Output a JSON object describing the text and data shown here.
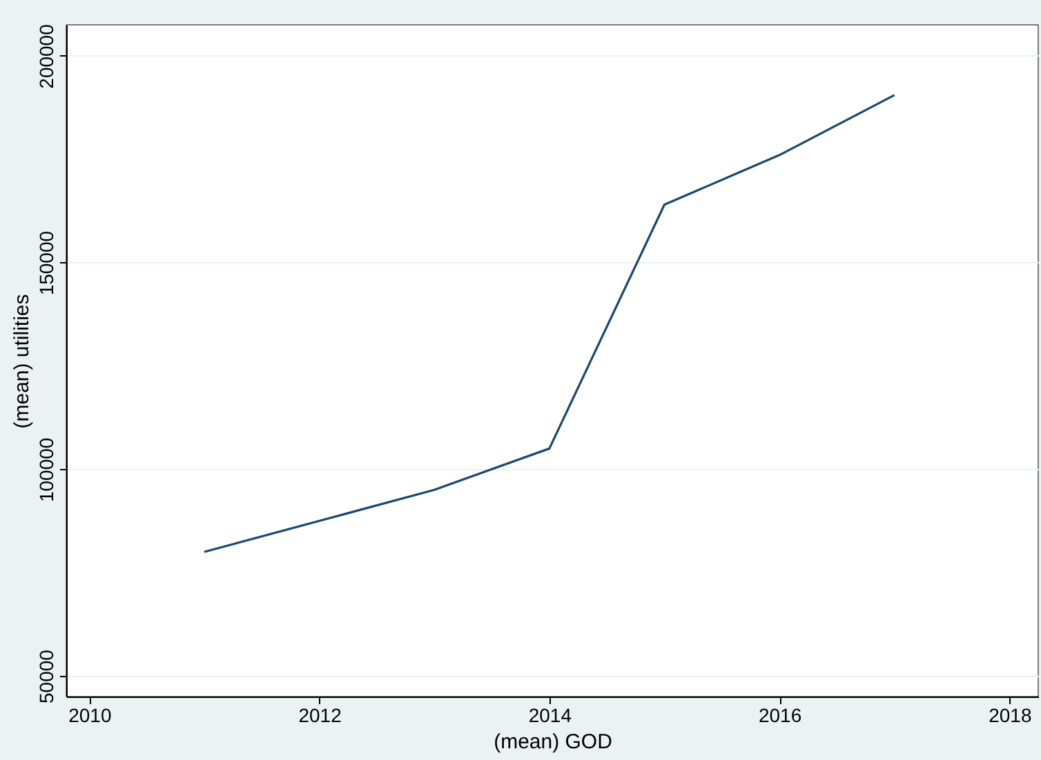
{
  "chart_data": {
    "type": "line",
    "xlabel": "(mean) GOD",
    "ylabel": "(mean) utilities",
    "x": [
      2011,
      2012,
      2013,
      2014,
      2015,
      2016,
      2017
    ],
    "series": [
      {
        "color": "#1a476f",
        "values": [
          80000,
          87500,
          95000,
          105000,
          164000,
          176000,
          190500
        ]
      }
    ],
    "xlim": [
      2009.8,
      2018.25
    ],
    "xticks": [
      2010,
      2012,
      2014,
      2016,
      2018
    ],
    "ylim": [
      45000,
      207500
    ],
    "yticks": [
      50000,
      100000,
      150000,
      200000
    ],
    "grid": "y",
    "marker": "none",
    "line_style": "solid"
  }
}
